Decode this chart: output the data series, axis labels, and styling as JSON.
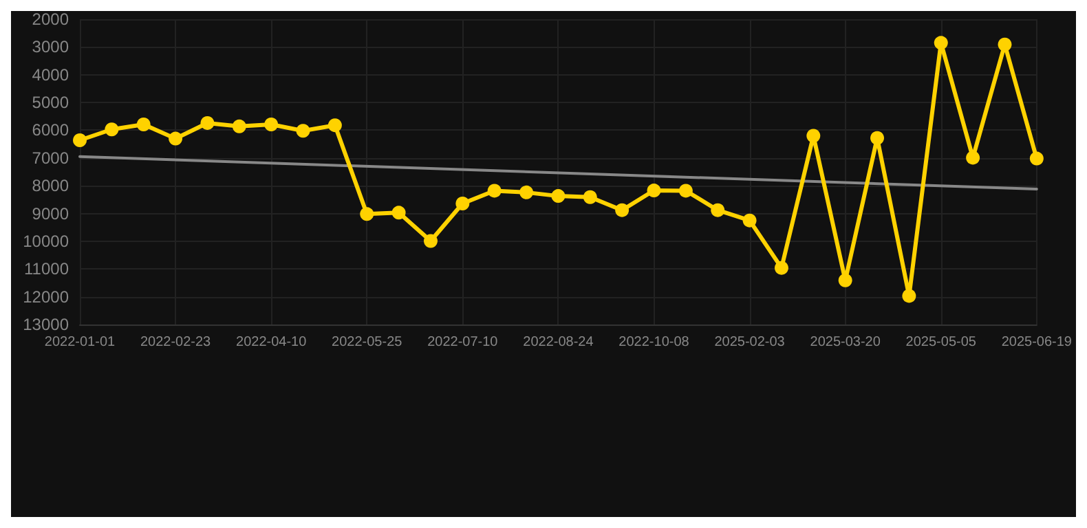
{
  "chart_data": {
    "type": "line",
    "categories": [
      "2022-01-01",
      null,
      null,
      "2022-02-23",
      null,
      null,
      "2022-04-10",
      null,
      null,
      "2022-05-25",
      null,
      null,
      "2022-07-10",
      null,
      null,
      "2022-08-24",
      null,
      null,
      "2022-10-08",
      null,
      null,
      "2025-02-03",
      null,
      null,
      "2025-03-20",
      null,
      null,
      "2025-05-05",
      null,
      null,
      "2025-06-19"
    ],
    "series": [
      {
        "color": "#ffd200",
        "marker": "circle",
        "values": [
          6360,
          5970,
          5790,
          6300,
          5740,
          5860,
          5790,
          6020,
          5820,
          9020,
          8970,
          9990,
          8640,
          8180,
          8240,
          8370,
          8410,
          8880,
          8170,
          8180,
          8880,
          9250,
          10960,
          6200,
          11410,
          6280,
          11970,
          2850,
          6990,
          2910,
          7020
        ]
      },
      {
        "type": "line",
        "color": "#888888",
        "marker": "none",
        "values": [
          6950,
          null,
          null,
          null,
          null,
          null,
          null,
          null,
          null,
          null,
          null,
          null,
          null,
          null,
          null,
          null,
          null,
          null,
          null,
          null,
          null,
          null,
          null,
          null,
          null,
          null,
          null,
          null,
          null,
          null,
          8120
        ]
      }
    ],
    "ylim": [
      13000,
      2000
    ],
    "yticks": [
      2000,
      3000,
      4000,
      5000,
      6000,
      7000,
      8000,
      9000,
      10000,
      11000,
      12000,
      13000
    ],
    "grid": true,
    "line_style": "solid"
  }
}
